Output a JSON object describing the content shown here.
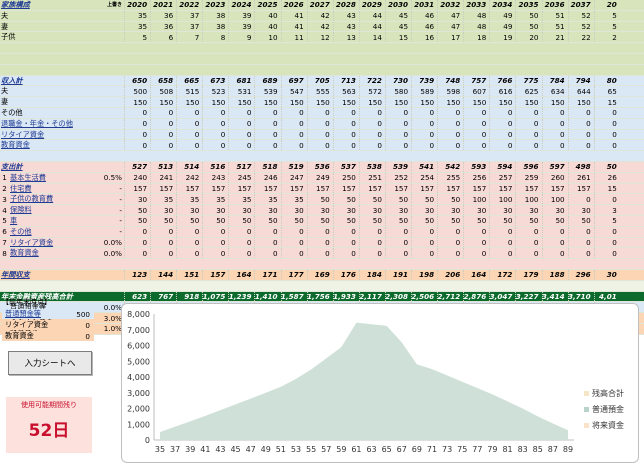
{
  "years": [
    "2020",
    "2021",
    "2022",
    "2023",
    "2024",
    "2025",
    "2026",
    "2027",
    "2028",
    "2029",
    "2030",
    "2031",
    "2032",
    "2033",
    "2034",
    "2035",
    "2036",
    "2037",
    "20"
  ],
  "family": {
    "title": "家族構成",
    "header_label": "上書き",
    "rows": [
      {
        "label": "夫",
        "values": [
          "35",
          "36",
          "37",
          "38",
          "39",
          "40",
          "41",
          "42",
          "43",
          "44",
          "45",
          "46",
          "47",
          "48",
          "49",
          "50",
          "51",
          "52",
          "5"
        ]
      },
      {
        "label": "妻",
        "values": [
          "35",
          "36",
          "37",
          "38",
          "39",
          "40",
          "41",
          "42",
          "43",
          "44",
          "45",
          "46",
          "47",
          "48",
          "49",
          "50",
          "51",
          "52",
          "5"
        ]
      },
      {
        "label": "子供",
        "values": [
          "5",
          "6",
          "7",
          "8",
          "9",
          "10",
          "11",
          "12",
          "13",
          "14",
          "15",
          "16",
          "17",
          "18",
          "19",
          "20",
          "21",
          "22",
          "2"
        ]
      }
    ]
  },
  "income": {
    "title": "収入計",
    "totals": [
      "650",
      "658",
      "665",
      "673",
      "681",
      "689",
      "697",
      "705",
      "713",
      "722",
      "730",
      "739",
      "748",
      "757",
      "766",
      "775",
      "784",
      "794",
      "80"
    ],
    "rows": [
      {
        "label": "夫",
        "values": [
          "500",
          "508",
          "515",
          "523",
          "531",
          "539",
          "547",
          "555",
          "563",
          "572",
          "580",
          "589",
          "598",
          "607",
          "616",
          "625",
          "634",
          "644",
          "65"
        ]
      },
      {
        "label": "妻",
        "values": [
          "150",
          "150",
          "150",
          "150",
          "150",
          "150",
          "150",
          "150",
          "150",
          "150",
          "150",
          "150",
          "150",
          "150",
          "150",
          "150",
          "150",
          "150",
          "15"
        ]
      },
      {
        "label": "その他",
        "values": [
          "0",
          "0",
          "0",
          "0",
          "0",
          "0",
          "0",
          "0",
          "0",
          "0",
          "0",
          "0",
          "0",
          "0",
          "0",
          "0",
          "0",
          "0",
          "0"
        ]
      },
      {
        "label": "退職金・年金・その他",
        "values": [
          "0",
          "0",
          "0",
          "0",
          "0",
          "0",
          "0",
          "0",
          "0",
          "0",
          "0",
          "0",
          "0",
          "0",
          "0",
          "0",
          "0",
          "0",
          "0"
        ]
      },
      {
        "label": "リタイア資金",
        "values": [
          "0",
          "0",
          "0",
          "0",
          "0",
          "0",
          "0",
          "0",
          "0",
          "0",
          "0",
          "0",
          "0",
          "0",
          "0",
          "0",
          "0",
          "0",
          "0"
        ]
      },
      {
        "label": "教育資金",
        "values": [
          "0",
          "0",
          "0",
          "0",
          "0",
          "0",
          "0",
          "0",
          "0",
          "0",
          "0",
          "0",
          "0",
          "0",
          "0",
          "0",
          "0",
          "0",
          "0"
        ]
      }
    ]
  },
  "expense": {
    "title": "支出計",
    "totals": [
      "527",
      "513",
      "514",
      "516",
      "517",
      "518",
      "519",
      "536",
      "537",
      "538",
      "539",
      "541",
      "542",
      "593",
      "594",
      "596",
      "597",
      "498",
      "50"
    ],
    "rows": [
      {
        "num": "1",
        "label": "基本生活費",
        "rate": "0.5%",
        "values": [
          "240",
          "241",
          "242",
          "243",
          "245",
          "246",
          "247",
          "249",
          "250",
          "251",
          "252",
          "254",
          "255",
          "256",
          "257",
          "259",
          "260",
          "261",
          "26"
        ]
      },
      {
        "num": "2",
        "label": "住宅費",
        "rate": "-",
        "values": [
          "157",
          "157",
          "157",
          "157",
          "157",
          "157",
          "157",
          "157",
          "157",
          "157",
          "157",
          "157",
          "157",
          "157",
          "157",
          "157",
          "157",
          "157",
          "15"
        ]
      },
      {
        "num": "3",
        "label": "子供の教育費",
        "rate": "-",
        "values": [
          "30",
          "35",
          "35",
          "35",
          "35",
          "35",
          "35",
          "50",
          "50",
          "50",
          "50",
          "50",
          "50",
          "100",
          "100",
          "100",
          "100",
          "0",
          "0"
        ]
      },
      {
        "num": "4",
        "label": "保険料",
        "rate": "-",
        "values": [
          "50",
          "30",
          "30",
          "30",
          "30",
          "30",
          "30",
          "30",
          "30",
          "30",
          "30",
          "30",
          "30",
          "30",
          "30",
          "30",
          "30",
          "30",
          "3"
        ]
      },
      {
        "num": "5",
        "label": "車",
        "rate": "-",
        "values": [
          "50",
          "50",
          "50",
          "50",
          "50",
          "50",
          "50",
          "50",
          "50",
          "50",
          "50",
          "50",
          "50",
          "50",
          "50",
          "50",
          "50",
          "50",
          "5"
        ]
      },
      {
        "num": "6",
        "label": "その他",
        "rate": "-",
        "values": [
          "0",
          "0",
          "0",
          "0",
          "0",
          "0",
          "0",
          "0",
          "0",
          "0",
          "0",
          "0",
          "0",
          "0",
          "0",
          "0",
          "0",
          "0",
          "0"
        ]
      },
      {
        "num": "7",
        "label": "リタイア資金",
        "rate": "0.0%",
        "values": [
          "0",
          "0",
          "0",
          "0",
          "0",
          "0",
          "0",
          "0",
          "0",
          "0",
          "0",
          "0",
          "0",
          "0",
          "0",
          "0",
          "0",
          "0",
          "0"
        ]
      },
      {
        "num": "8",
        "label": "教育資金",
        "rate": "0.0%",
        "values": [
          "0",
          "0",
          "0",
          "0",
          "0",
          "0",
          "0",
          "0",
          "0",
          "0",
          "0",
          "0",
          "0",
          "0",
          "0",
          "0",
          "0",
          "0",
          "0"
        ]
      }
    ]
  },
  "balance": {
    "title": "年間収支",
    "values": [
      "123",
      "144",
      "151",
      "157",
      "164",
      "171",
      "177",
      "169",
      "176",
      "184",
      "191",
      "198",
      "206",
      "164",
      "172",
      "179",
      "188",
      "296",
      "30"
    ]
  },
  "assets": {
    "title": "年末金融資産残高合計",
    "totals": [
      "623",
      "767",
      "918",
      "1,075",
      "1,239",
      "1,410",
      "1,587",
      "1,756",
      "1,933",
      "2,117",
      "2,308",
      "2,506",
      "2,712",
      "2,876",
      "3,047",
      "3,227",
      "3,414",
      "3,710",
      "4,01"
    ],
    "rows": [
      {
        "label": "普通預金等",
        "rate": "0.0%",
        "values": [
          "623",
          "767",
          "918",
          "1,075",
          "1,239",
          "1,410",
          "1,587",
          "1,756",
          "1,933",
          "2,117",
          "2,308",
          "2,506",
          "2,712",
          "2,876",
          "3,047",
          "3,227",
          "3,414",
          "3,710",
          "4,01"
        ]
      },
      {
        "label": "リタイア資金",
        "rate": "3.0%",
        "values": [
          "0",
          "0",
          "0",
          "0",
          "0",
          "0",
          "0",
          "0",
          "0",
          "0",
          "0",
          "0",
          "0",
          "0",
          "0",
          "0",
          "0",
          "0",
          "0"
        ]
      },
      {
        "label": "教育資金",
        "rate": "1.0%",
        "values": [
          "0",
          "0",
          "0",
          "0",
          "0",
          "0",
          "0",
          "0",
          "0",
          "0",
          "0",
          "0",
          "0",
          "0",
          "0",
          "0",
          "0",
          "0",
          "0"
        ]
      }
    ]
  },
  "prev_year": {
    "title": "【前年末時点】",
    "rows": [
      {
        "label": "普通預金等",
        "value": "500"
      },
      {
        "label": "リタイア資金",
        "value": "0"
      },
      {
        "label": "教育資金",
        "value": "0"
      }
    ]
  },
  "input_button": "入力シートへ",
  "usable_period": {
    "label": "使用可能期間残り",
    "value": "52日"
  },
  "chart_data": {
    "type": "area",
    "x": [
      "35",
      "37",
      "39",
      "41",
      "43",
      "45",
      "47",
      "49",
      "51",
      "53",
      "55",
      "57",
      "59",
      "61",
      "63",
      "65",
      "67",
      "69",
      "71",
      "73",
      "75",
      "77",
      "79",
      "81",
      "83",
      "85",
      "87",
      "89"
    ],
    "series": [
      {
        "name": "普通預金",
        "values": [
          500,
          850,
          1180,
          1530,
          1900,
          2260,
          2630,
          3000,
          3380,
          3880,
          4480,
          5180,
          5900,
          7450,
          7350,
          7250,
          6200,
          4800,
          4500,
          4100,
          3700,
          3300,
          2900,
          2450,
          2000,
          1500,
          1050,
          620
        ]
      }
    ],
    "legend": [
      "残高合計",
      "普通預金",
      "将来資金"
    ],
    "colors": {
      "area": "#cfe0d8",
      "legend_total": "#f5e6c8",
      "legend_savings": "#b9d3c8",
      "legend_future": "#fae3c8"
    },
    "yticks": [
      "8,000",
      "7,000",
      "6,000",
      "5,000",
      "4,000",
      "3,000",
      "2,000",
      "1,000",
      "0"
    ],
    "ylim": [
      0,
      8000
    ],
    "legend_position": "right"
  }
}
